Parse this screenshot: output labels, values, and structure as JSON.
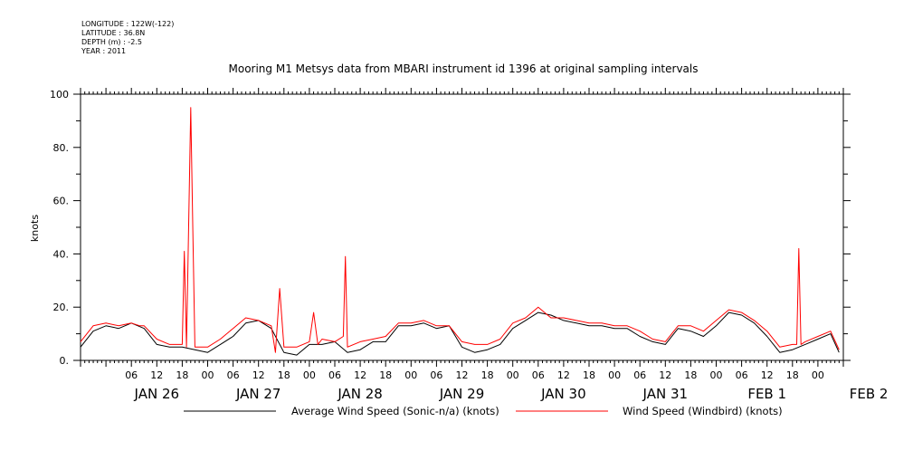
{
  "metadata": {
    "longitude": "LONGITUDE : 122W(-122)",
    "latitude": "LATITUDE : 36.8N",
    "depth": "DEPTH (m) : -2.5",
    "year": "YEAR : 2011"
  },
  "chart_data": {
    "type": "line",
    "title": "Mooring M1 Metsys data from MBARI instrument id 1396 at original sampling intervals",
    "xlabel": "",
    "ylabel": "knots",
    "x_unit": "hours since 2011-01-25 18:00",
    "xlim": [
      0,
      180
    ],
    "ylim": [
      0,
      100
    ],
    "y_ticks": [
      "0.",
      "20.",
      "40.",
      "60.",
      "80.",
      "100"
    ],
    "x_tick_hour_labels": [
      "06",
      "12",
      "18",
      "00",
      "06",
      "12",
      "18",
      "00",
      "06",
      "12",
      "18",
      "00",
      "06",
      "12",
      "18",
      "00",
      "06",
      "12",
      "18",
      "00",
      "06",
      "12",
      "18",
      "00",
      "06",
      "12",
      "18",
      "00"
    ],
    "date_labels": [
      "JAN 26",
      "JAN 27",
      "JAN 28",
      "JAN 29",
      "JAN 30",
      "JAN 31",
      "FEB  1",
      "FEB  2"
    ],
    "grid": false,
    "legend_position": "bottom",
    "series": [
      {
        "name": "Average Wind Speed (Sonic-n/a) (knots)",
        "color": "#000000",
        "x": [
          0,
          3,
          6,
          9,
          12,
          15,
          18,
          21,
          24,
          27,
          30,
          33,
          36,
          39,
          42,
          45,
          48,
          51,
          54,
          57,
          60,
          63,
          66,
          69,
          72,
          75,
          78,
          81,
          84,
          87,
          90,
          93,
          96,
          99,
          102,
          105,
          108,
          111,
          114,
          117,
          120,
          123,
          126,
          129,
          132,
          135,
          138,
          141,
          144,
          147,
          150,
          153,
          156,
          159,
          162,
          165,
          168,
          171,
          174,
          177,
          179
        ],
        "y": [
          5,
          11,
          13,
          12,
          14,
          12,
          6,
          5,
          5,
          4,
          3,
          6,
          9,
          14,
          15,
          12,
          3,
          2,
          6,
          6,
          7,
          3,
          4,
          7,
          7,
          13,
          13,
          14,
          12,
          13,
          5,
          3,
          4,
          6,
          12,
          15,
          18,
          17,
          15,
          14,
          13,
          13,
          12,
          12,
          9,
          7,
          6,
          12,
          11,
          9,
          13,
          18,
          17,
          14,
          9,
          3,
          4,
          6,
          8,
          10,
          3
        ],
        "data_labels": []
      },
      {
        "name": "Wind Speed (Windbird) (knots)",
        "color": "#ff0000",
        "x": [
          0,
          3,
          6,
          9,
          12,
          14,
          15,
          18,
          21,
          24,
          24.5,
          25,
          26,
          26.5,
          27,
          30,
          33,
          36,
          39,
          42,
          45,
          46,
          47,
          48,
          51,
          54,
          55,
          56,
          57,
          60,
          62,
          62.5,
          63,
          66,
          69,
          72,
          75,
          78,
          81,
          84,
          87,
          90,
          93,
          96,
          99,
          102,
          105,
          108,
          111,
          114,
          117,
          120,
          123,
          126,
          129,
          132,
          135,
          138,
          141,
          144,
          147,
          150,
          153,
          156,
          159,
          162,
          165,
          168,
          169,
          169.5,
          170,
          171,
          174,
          177,
          179
        ],
        "y": [
          7,
          13,
          14,
          13,
          14,
          13,
          13,
          8,
          6,
          6,
          41,
          5,
          95,
          49,
          5,
          5,
          8,
          12,
          16,
          15,
          13,
          3,
          27,
          5,
          5,
          7,
          18,
          6,
          8,
          7,
          9,
          39,
          5,
          7,
          8,
          9,
          14,
          14,
          15,
          13,
          13,
          7,
          6,
          6,
          8,
          14,
          16,
          20,
          16,
          16,
          15,
          14,
          14,
          13,
          13,
          11,
          8,
          7,
          13,
          13,
          11,
          15,
          19,
          18,
          15,
          11,
          5,
          6,
          6,
          42,
          6,
          7,
          9,
          11,
          4
        ],
        "data_labels": []
      }
    ]
  }
}
